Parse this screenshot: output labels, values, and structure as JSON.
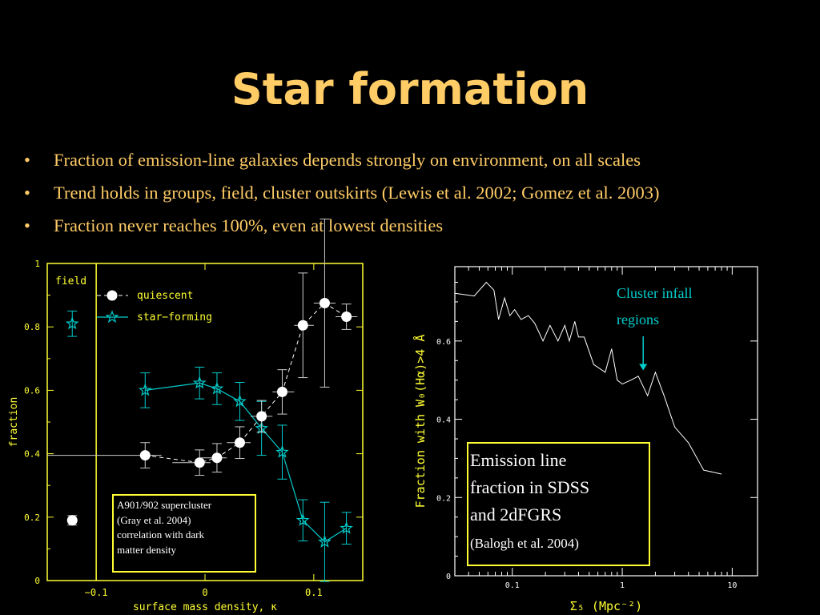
{
  "slide": {
    "title": "Star formation",
    "bullets": [
      "Fraction of  emission-line galaxies depends strongly on environment, on all scales",
      "Trend holds in groups, field, cluster outskirts (Lewis et al. 2002; Gomez et al. 2003)",
      "Fraction never reaches 100%, even at lowest densities"
    ]
  },
  "chart_data": [
    {
      "type": "scatter",
      "title": "",
      "xlabel": "surface mass density, κ",
      "ylabel": "fraction",
      "xlim": [
        -0.145,
        0.145
      ],
      "ylim": [
        0,
        1
      ],
      "x_ticks": [
        -0.1,
        0,
        0.1
      ],
      "x_tick_labels": [
        "−0.1",
        "0",
        "0.1"
      ],
      "y_ticks": [
        0,
        0.2,
        0.4,
        0.6,
        0.8,
        1
      ],
      "y_tick_labels": [
        "0",
        "0.2",
        "0.4",
        "0.6",
        "0.8",
        "1"
      ],
      "field_label": "field",
      "field_divider_x": -0.1,
      "legend": {
        "position": "top-left",
        "entries": [
          "quiescent",
          "star−forming"
        ]
      },
      "series": [
        {
          "name": "quiescent",
          "marker": "circle",
          "line": "dashed",
          "color": "#ffffff",
          "x": [
            -0.055,
            -0.005,
            0.011,
            0.032,
            0.052,
            0.071,
            0.09,
            0.11,
            0.13
          ],
          "y": [
            0.395,
            0.372,
            0.387,
            0.435,
            0.518,
            0.595,
            0.805,
            0.875,
            0.832
          ],
          "yerr": [
            0.04,
            0.04,
            0.045,
            0.05,
            0.05,
            0.07,
            0.165,
            0.265,
            0.04
          ],
          "xlo": [
            -0.145,
            -0.03,
            -0.005,
            0.02,
            0.042,
            0.062,
            0.082,
            0.1,
            0.12
          ],
          "xhi": [
            -0.04,
            0.005,
            0.02,
            0.042,
            0.062,
            0.082,
            0.1,
            0.12,
            0.14
          ],
          "field_point": {
            "y": 0.19,
            "yerr": 0.015
          }
        },
        {
          "name": "star−forming",
          "marker": "star",
          "line": "solid",
          "color": "#00cccc",
          "x": [
            -0.055,
            -0.005,
            0.011,
            0.032,
            0.052,
            0.071,
            0.09,
            0.11,
            0.13
          ],
          "y": [
            0.6,
            0.623,
            0.605,
            0.565,
            0.48,
            0.405,
            0.19,
            0.122,
            0.165
          ],
          "yerr": [
            0.055,
            0.05,
            0.05,
            0.06,
            0.085,
            0.085,
            0.065,
            0.125,
            0.05
          ],
          "field_point": {
            "y": 0.81,
            "yerr": 0.04
          }
        }
      ],
      "annotation": [
        "A901/902 supercluster",
        "(Gray et al. 2004)",
        "correlation with dark",
        "matter density"
      ]
    },
    {
      "type": "line",
      "title": "",
      "xlabel": "Σ₅ (Mpc⁻²)",
      "ylabel": "Fraction with W₀(Hα)>4 Å",
      "x_scale": "log",
      "xlim": [
        0.03,
        17
      ],
      "ylim": [
        0,
        0.79
      ],
      "x_ticks": [
        0.1,
        1,
        10
      ],
      "x_tick_labels": [
        "0.1",
        "1",
        "10"
      ],
      "y_ticks": [
        0,
        0.2,
        0.4,
        0.6
      ],
      "y_tick_labels": [
        "0",
        "0.2",
        "0.4",
        "0.6"
      ],
      "series": [
        {
          "color": "#ffffff",
          "x": [
            0.03,
            0.045,
            0.058,
            0.068,
            0.075,
            0.085,
            0.095,
            0.105,
            0.12,
            0.14,
            0.16,
            0.19,
            0.22,
            0.26,
            0.3,
            0.33,
            0.37,
            0.4,
            0.45,
            0.55,
            0.7,
            0.8,
            0.9,
            1.0,
            1.2,
            1.4,
            1.7,
            2.0,
            2.4,
            3.0,
            4.0,
            5.5,
            8.0
          ],
          "y": [
            0.722,
            0.715,
            0.75,
            0.73,
            0.655,
            0.71,
            0.665,
            0.68,
            0.655,
            0.665,
            0.645,
            0.6,
            0.64,
            0.6,
            0.64,
            0.6,
            0.65,
            0.61,
            0.61,
            0.54,
            0.52,
            0.58,
            0.5,
            0.49,
            0.5,
            0.51,
            0.46,
            0.52,
            0.46,
            0.38,
            0.34,
            0.27,
            0.26
          ]
        }
      ],
      "annotation_arrow": {
        "label_lines": [
          "Cluster infall",
          "regions"
        ],
        "x": 1.55,
        "y_tip": 0.525
      }
    }
  ],
  "boxes": {
    "right_box": {
      "lines": [
        "Emission line",
        "fraction in SDSS",
        "and 2dFGRS"
      ],
      "citation": "(Balogh et al. 2004)"
    }
  }
}
